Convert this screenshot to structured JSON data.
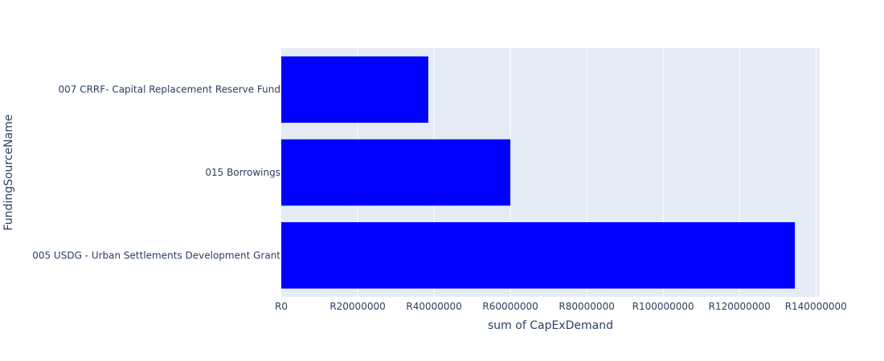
{
  "chart_data": {
    "type": "bar",
    "orientation": "horizontal",
    "categories": [
      "005 USDG - Urban Settlements Development Grant",
      "015 Borrowings",
      "007 CRRF- Capital Replacement Reserve Fund"
    ],
    "values": [
      134500000,
      60000000,
      38500000
    ],
    "xlabel": "sum of CapExDemand",
    "ylabel": "FundingSourceName",
    "xlim": [
      0,
      141000000
    ],
    "x_ticks": [
      0,
      20000000,
      40000000,
      60000000,
      80000000,
      100000000,
      120000000,
      140000000
    ],
    "x_tick_labels": [
      "R0",
      "R20000000",
      "R40000000",
      "R60000000",
      "R80000000",
      "R100000000",
      "R120000000",
      "R140000000"
    ],
    "grid": true,
    "colors": {
      "bar": "#0000ff",
      "plot_background": "#e5ecf6",
      "gridline": "#ffffff",
      "text": "#2a3f5f"
    }
  }
}
